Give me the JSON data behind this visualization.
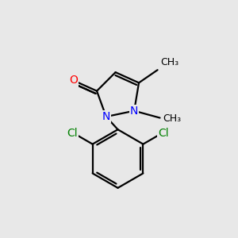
{
  "bg_color": "#e8e8e8",
  "bond_color": "#000000",
  "bond_width": 1.6,
  "atom_colors": {
    "N": "#0000ff",
    "O": "#ff0000",
    "Cl": "#008000",
    "C": "#000000"
  },
  "font_size_atom": 10,
  "font_size_methyl": 9,
  "xlim": [
    0,
    10
  ],
  "ylim": [
    0,
    10
  ]
}
